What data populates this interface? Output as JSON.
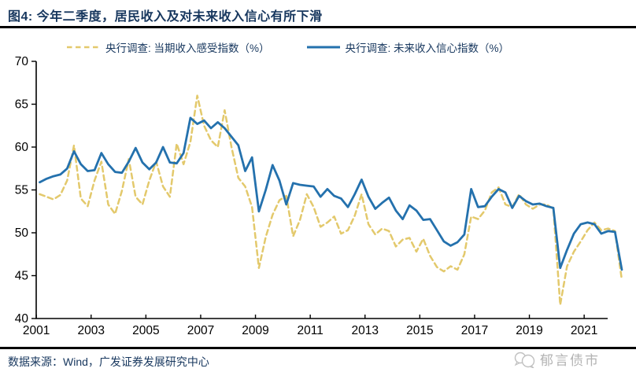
{
  "header": {
    "title": "图4: 今年二季度，居民收入及对未来收入信心有所下滑"
  },
  "legend": [
    {
      "label": "央行调查: 当期收入感受指数（%）",
      "color": "#E3C96C",
      "style": "dashed"
    },
    {
      "label": "央行调查: 未来收入信心指数（%）",
      "color": "#2471AD",
      "style": "solid"
    }
  ],
  "chart_data": {
    "type": "line",
    "frequency": "quarterly",
    "x_start": "2001Q1",
    "x_end": "2022Q2",
    "x_tick_labels": [
      "2001",
      "2003",
      "2005",
      "2007",
      "2009",
      "2011",
      "2013",
      "2015",
      "2017",
      "2019",
      "2021"
    ],
    "ylim": [
      40,
      70
    ],
    "y_ticks": [
      40,
      45,
      50,
      55,
      60,
      65,
      70
    ],
    "grid": false,
    "legend_position": "top",
    "series": [
      {
        "name": "央行调查: 当期收入感受指数（%）",
        "color": "#E3C96C",
        "dash": true,
        "values": [
          54.5,
          54.2,
          53.9,
          54.4,
          56.1,
          60.2,
          54.0,
          53.1,
          56.1,
          58.3,
          53.3,
          52.2,
          54.9,
          58.6,
          54.2,
          53.3,
          56.1,
          58.3,
          55.4,
          54.2,
          60.4,
          58.0,
          60.6,
          66.0,
          62.5,
          60.8,
          60.0,
          64.3,
          60.0,
          56.4,
          55.4,
          53.0,
          45.9,
          49.5,
          52.1,
          53.8,
          54.3,
          49.6,
          51.5,
          54.5,
          53.0,
          50.7,
          51.2,
          51.9,
          49.9,
          50.3,
          52.0,
          54.5,
          51.0,
          49.8,
          50.5,
          50.2,
          48.4,
          49.2,
          49.4,
          47.8,
          49.3,
          47.3,
          46.0,
          45.5,
          46.1,
          45.7,
          47.5,
          51.9,
          51.6,
          52.6,
          54.7,
          55.3,
          53.3,
          53.0,
          54.5,
          53.3,
          52.8,
          53.3,
          53.3,
          52.8,
          41.6,
          46.1,
          47.8,
          49.0,
          50.3,
          51.2,
          50.3,
          50.5,
          50.2,
          44.5
        ]
      },
      {
        "name": "央行调查: 未来收入信心指数（%）",
        "color": "#2471AD",
        "dash": false,
        "values": [
          55.9,
          56.3,
          56.6,
          56.8,
          57.5,
          59.5,
          58.0,
          57.2,
          57.3,
          59.3,
          58.0,
          57.1,
          57.0,
          58.3,
          59.9,
          58.2,
          57.4,
          58.2,
          60.0,
          58.2,
          58.1,
          59.3,
          63.4,
          62.7,
          63.1,
          62.2,
          62.9,
          62.2,
          61.2,
          60.2,
          57.2,
          58.8,
          52.5,
          55.0,
          57.9,
          56.1,
          53.3,
          55.8,
          55.6,
          55.5,
          55.4,
          54.2,
          55.1,
          54.3,
          54.0,
          53.0,
          54.5,
          56.2,
          54.2,
          52.8,
          53.5,
          54.1,
          52.6,
          51.6,
          53.2,
          52.6,
          51.5,
          51.6,
          50.3,
          49.0,
          48.5,
          48.9,
          49.8,
          55.1,
          53.0,
          53.1,
          54.2,
          55.1,
          54.7,
          52.9,
          54.3,
          53.7,
          53.3,
          53.4,
          53.1,
          52.9,
          45.9,
          48.0,
          49.9,
          51.0,
          51.2,
          51.0,
          49.9,
          50.2,
          50.1,
          45.7
        ]
      }
    ]
  },
  "footer": {
    "source": "数据来源：Wind，广发证券发展研究中心",
    "watermark": "郁言债市"
  },
  "colors": {
    "axis": "#000000",
    "heading_text": "#17375E",
    "watermark_gray": "#b3b3b3"
  }
}
